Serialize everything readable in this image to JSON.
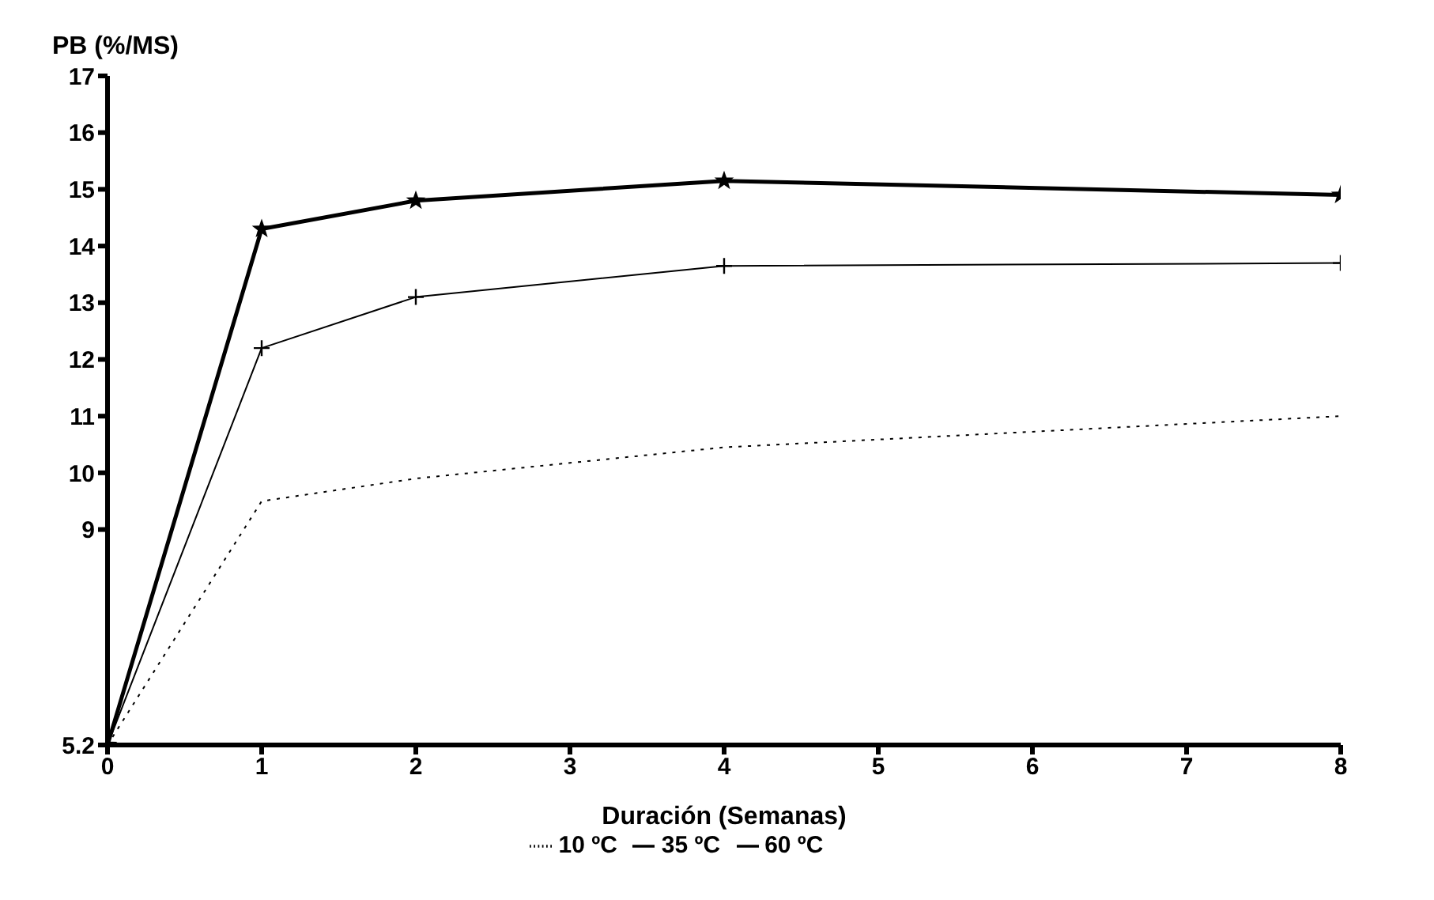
{
  "chart_data": {
    "type": "line",
    "ylabel": "PB (%/MS)",
    "xlabel": "Duración (Semanas)",
    "x": [
      0,
      1,
      2,
      4,
      8
    ],
    "xlim": [
      0,
      8
    ],
    "xticks": [
      0,
      1,
      2,
      3,
      4,
      5,
      6,
      7,
      8
    ],
    "ylim": [
      5.2,
      17
    ],
    "yticks": [
      5.2,
      9,
      10,
      11,
      12,
      13,
      14,
      15,
      16,
      17
    ],
    "grid": false,
    "legend": "bottom",
    "series": [
      {
        "name": "10 ºC",
        "color": "#000000",
        "values": [
          5.2,
          9.5,
          9.9,
          10.45,
          11.0
        ],
        "marker": "none",
        "line_style": "dotted"
      },
      {
        "name": "35 ºC",
        "color": "#000000",
        "values": [
          5.2,
          12.2,
          13.1,
          13.65,
          13.7
        ],
        "marker": "cross",
        "line_style": "solid"
      },
      {
        "name": "60 ºC",
        "color": "#000000",
        "values": [
          5.2,
          14.3,
          14.8,
          15.15,
          14.9
        ],
        "marker": "star",
        "line_style": "solid"
      }
    ]
  }
}
